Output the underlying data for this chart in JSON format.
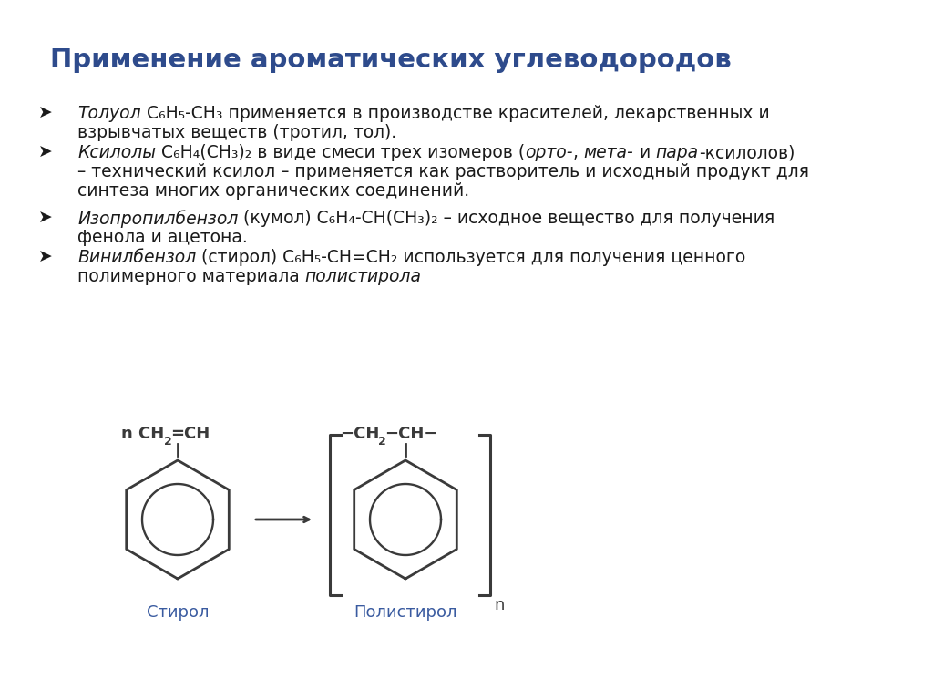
{
  "title": "Применение ароматических углеводородов",
  "title_color": "#2E4B8C",
  "title_fontsize": 21,
  "background_color": "#FFFFFF",
  "outer_bg": "#FFFFFF",
  "text_color": "#1A1A1A",
  "label_color": "#3A5BA0",
  "molecule_color": "#3A3A3A",
  "bullet_symbol": "➤",
  "bullet1_italic": "Толуол",
  "bullet1_normal": " C₆H₅-CH₃ применяется в производстве красителей, лекарственных и",
  "bullet1_line2": "взрывчатых веществ (тротил, тол).",
  "bullet2_italic": "Ксилолы",
  "bullet2_normal": " C₆H₄(CH₃)₂ в виде смеси трех изомеров (",
  "bullet2_ortho": "орто-",
  "bullet2_mid": ", ",
  "bullet2_meta": "мета-",
  "bullet2_mid2": " и ",
  "bullet2_para": "пара",
  "bullet2_end": "-ксилолов)",
  "bullet2_line2": "– технический ксилол – применяется как растворитель и исходный продукт для",
  "bullet2_line3": "синтеза многих органических соединений.",
  "bullet3_italic": "Изопропилбензол",
  "bullet3_normal": " (кумол) C₆H₄-CH(CH₃)₂ – исходное вещество для получения",
  "bullet3_line2": "фенола и ацетона.",
  "bullet4_italic": "Винилбензол",
  "bullet4_normal": " (стирол) C₆H₅-CH=CH₂ используется для получения ценного",
  "bullet4_line2_normal": "полимерного материала ",
  "bullet4_line2_italic": "полистирола",
  "styrene_label": "Стирол",
  "polystyrene_label": "Полистирол"
}
